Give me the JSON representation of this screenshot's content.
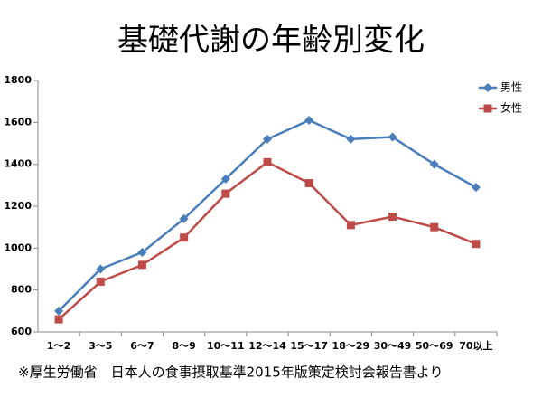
{
  "chart_data": {
    "type": "line",
    "title": "基礎代謝の年齢別変化",
    "footnote": "※厚生労働省　日本人の食事摂取基準2015年版策定検討会報告書より",
    "categories": [
      "1～2",
      "3～5",
      "6～7",
      "8～9",
      "10～11",
      "12～14",
      "15～17",
      "18～29",
      "30～49",
      "50～69",
      "70以上"
    ],
    "series": [
      {
        "name": "男性",
        "color": "#4a7ebb",
        "marker": "diamond",
        "values": [
          700,
          900,
          980,
          1140,
          1330,
          1520,
          1610,
          1520,
          1530,
          1400,
          1290
        ]
      },
      {
        "name": "女性",
        "color": "#be4b48",
        "marker": "square",
        "values": [
          660,
          840,
          920,
          1050,
          1260,
          1410,
          1310,
          1110,
          1150,
          1100,
          1020
        ]
      }
    ],
    "ylim": [
      600,
      1800
    ],
    "yticks": [
      600,
      800,
      1000,
      1200,
      1400,
      1600,
      1800
    ],
    "grid": false,
    "legend": "top-right"
  }
}
